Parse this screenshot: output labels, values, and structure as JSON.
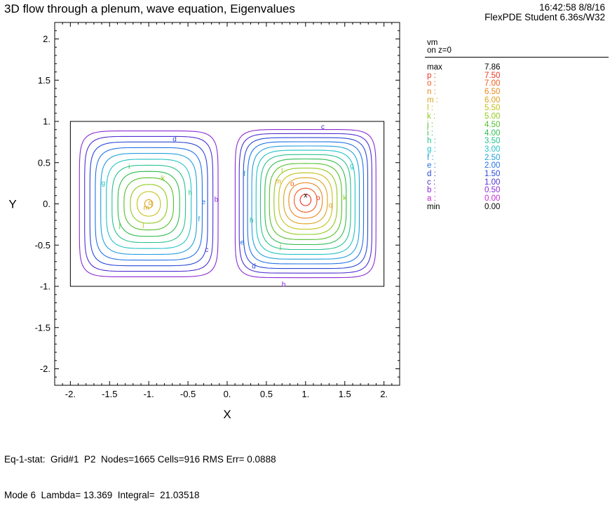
{
  "header": {
    "title": "3D flow through a plenum, wave equation, Eigenvalues",
    "time_date": "16:42:58 8/8/16",
    "software": "FlexPDE Student 6.36s/W32"
  },
  "legend": {
    "variable": "vm",
    "surface": "on z=0",
    "max_label": "max",
    "max_value": "7.86",
    "min_label": "min",
    "min_value": "0.00",
    "levels": [
      {
        "key": "p :",
        "value": "7.50",
        "color": "#e8331e"
      },
      {
        "key": "o :",
        "value": "7.00",
        "color": "#ee5a1a"
      },
      {
        "key": "n :",
        "value": "6.50",
        "color": "#e9861c"
      },
      {
        "key": "m :",
        "value": "6.00",
        "color": "#dba21c"
      },
      {
        "key": "l :",
        "value": "5.50",
        "color": "#c3c21a"
      },
      {
        "key": "k :",
        "value": "5.00",
        "color": "#8fc91d"
      },
      {
        "key": "j :",
        "value": "4.50",
        "color": "#52c02c"
      },
      {
        "key": "i :",
        "value": "4.00",
        "color": "#2ebc4f"
      },
      {
        "key": "h :",
        "value": "3.50",
        "color": "#27c18e"
      },
      {
        "key": "g :",
        "value": "3.00",
        "color": "#22c2c4"
      },
      {
        "key": "f :",
        "value": "2.50",
        "color": "#219edd"
      },
      {
        "key": "e :",
        "value": "2.00",
        "color": "#2172e6"
      },
      {
        "key": "d :",
        "value": "1.50",
        "color": "#2947d6"
      },
      {
        "key": "c :",
        "value": "1.00",
        "color": "#4e2fd0"
      },
      {
        "key": "b :",
        "value": "0.50",
        "color": "#8a2bd2"
      },
      {
        "key": "a :",
        "value": "0.00",
        "color": "#c22cd6"
      }
    ]
  },
  "chart_data": {
    "type": "contour",
    "variable": "vm",
    "xlabel": "X",
    "ylabel": "Y",
    "xlim": [
      -2.2,
      2.2
    ],
    "ylim": [
      -2.2,
      2.2
    ],
    "xticks": [
      -2,
      -1.5,
      -1,
      -0.5,
      0,
      0.5,
      1,
      1.5,
      2
    ],
    "xtick_labels": [
      "-2.",
      "-1.5",
      "-1.",
      "-0.5",
      "0.",
      "0.5",
      "1.",
      "1.5",
      "2."
    ],
    "yticks": [
      2,
      1.5,
      1,
      0.5,
      0,
      -0.5,
      -1,
      -1.5,
      -2
    ],
    "ytick_labels": [
      "2.",
      "1.5",
      "1.",
      "0.5",
      "0.",
      "-0.5",
      "-1.",
      "-1.5",
      "-2."
    ],
    "domain_box": {
      "x": [
        -2,
        2
      ],
      "y": [
        -1,
        1
      ]
    },
    "lobes": [
      {
        "region": {
          "x": [
            -1.95,
            -0.05
          ],
          "y": [
            -0.95,
            0.95
          ]
        },
        "center": [
          -1.0,
          0.0
        ],
        "peak": 6.2
      },
      {
        "region": {
          "x": [
            0.05,
            1.95
          ],
          "y": [
            -0.95,
            0.95
          ]
        },
        "center": [
          1.0,
          0.05
        ],
        "peak": 7.86
      }
    ],
    "max_marker": {
      "x": 1.0,
      "y": 0.1,
      "symbol": "x"
    },
    "contour_labels": [
      {
        "text": "d",
        "x": -0.67,
        "y": 0.79
      },
      {
        "text": "i",
        "x": -1.25,
        "y": 0.46
      },
      {
        "text": "k",
        "x": -0.82,
        "y": 0.32
      },
      {
        "text": "g",
        "x": -1.58,
        "y": 0.26
      },
      {
        "text": "h",
        "x": -0.47,
        "y": 0.14
      },
      {
        "text": "e",
        "x": -0.3,
        "y": 0.03
      },
      {
        "text": "b",
        "x": -0.14,
        "y": 0.06
      },
      {
        "text": "q",
        "x": -0.98,
        "y": 0.02
      },
      {
        "text": "m",
        "x": -1.03,
        "y": -0.04
      },
      {
        "text": "f",
        "x": -0.36,
        "y": -0.18
      },
      {
        "text": "j",
        "x": -1.37,
        "y": -0.25
      },
      {
        "text": "l",
        "x": -1.07,
        "y": -0.26
      },
      {
        "text": "c",
        "x": -0.26,
        "y": -0.55
      },
      {
        "text": "c",
        "x": 1.22,
        "y": 0.94
      },
      {
        "text": "g",
        "x": 1.59,
        "y": 0.47
      },
      {
        "text": "f",
        "x": 0.22,
        "y": 0.37
      },
      {
        "text": "l",
        "x": 0.7,
        "y": 0.41
      },
      {
        "text": "m",
        "x": 0.65,
        "y": 0.28
      },
      {
        "text": "o",
        "x": 0.83,
        "y": 0.25
      },
      {
        "text": "x",
        "x": 1.0,
        "y": 0.11
      },
      {
        "text": "p",
        "x": 1.16,
        "y": 0.08
      },
      {
        "text": "k",
        "x": 1.5,
        "y": 0.08
      },
      {
        "text": "q",
        "x": 1.32,
        "y": -0.01
      },
      {
        "text": "h",
        "x": 0.31,
        "y": -0.19
      },
      {
        "text": "e",
        "x": 0.19,
        "y": -0.46
      },
      {
        "text": "j",
        "x": 0.68,
        "y": -0.51
      },
      {
        "text": "d",
        "x": 0.34,
        "y": -0.75
      },
      {
        "text": "b",
        "x": 0.72,
        "y": -0.97
      }
    ]
  },
  "footer": {
    "line1": "Eq-1-stat:  Grid#1  P2  Nodes=1665 Cells=916 RMS Err= 0.0888",
    "line2": "Mode 6  Lambda= 13.369  Integral=  21.03518"
  }
}
